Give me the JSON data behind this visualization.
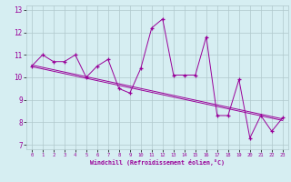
{
  "x": [
    0,
    1,
    2,
    3,
    4,
    5,
    6,
    7,
    8,
    9,
    10,
    11,
    12,
    13,
    14,
    15,
    16,
    17,
    18,
    19,
    20,
    21,
    22,
    23
  ],
  "y_main": [
    10.5,
    11.0,
    10.7,
    10.7,
    11.0,
    10.0,
    10.5,
    10.8,
    9.5,
    9.3,
    10.4,
    12.2,
    12.6,
    10.1,
    10.1,
    10.1,
    11.8,
    8.3,
    8.3,
    9.9,
    7.3,
    8.3,
    7.6,
    8.2
  ],
  "regression_y0": 10.55,
  "regression_y1": 8.15,
  "bg_color": "#d6eef2",
  "line_color": "#990099",
  "grid_color": "#b0c8cc",
  "xlabel": "Windchill (Refroidissement éolien,°C)",
  "xlim": [
    -0.5,
    23.5
  ],
  "ylim": [
    6.8,
    13.2
  ],
  "yticks": [
    7,
    8,
    9,
    10,
    11,
    12,
    13
  ],
  "xticks": [
    0,
    1,
    2,
    3,
    4,
    5,
    6,
    7,
    8,
    9,
    10,
    11,
    12,
    13,
    14,
    15,
    16,
    17,
    18,
    19,
    20,
    21,
    22,
    23
  ]
}
